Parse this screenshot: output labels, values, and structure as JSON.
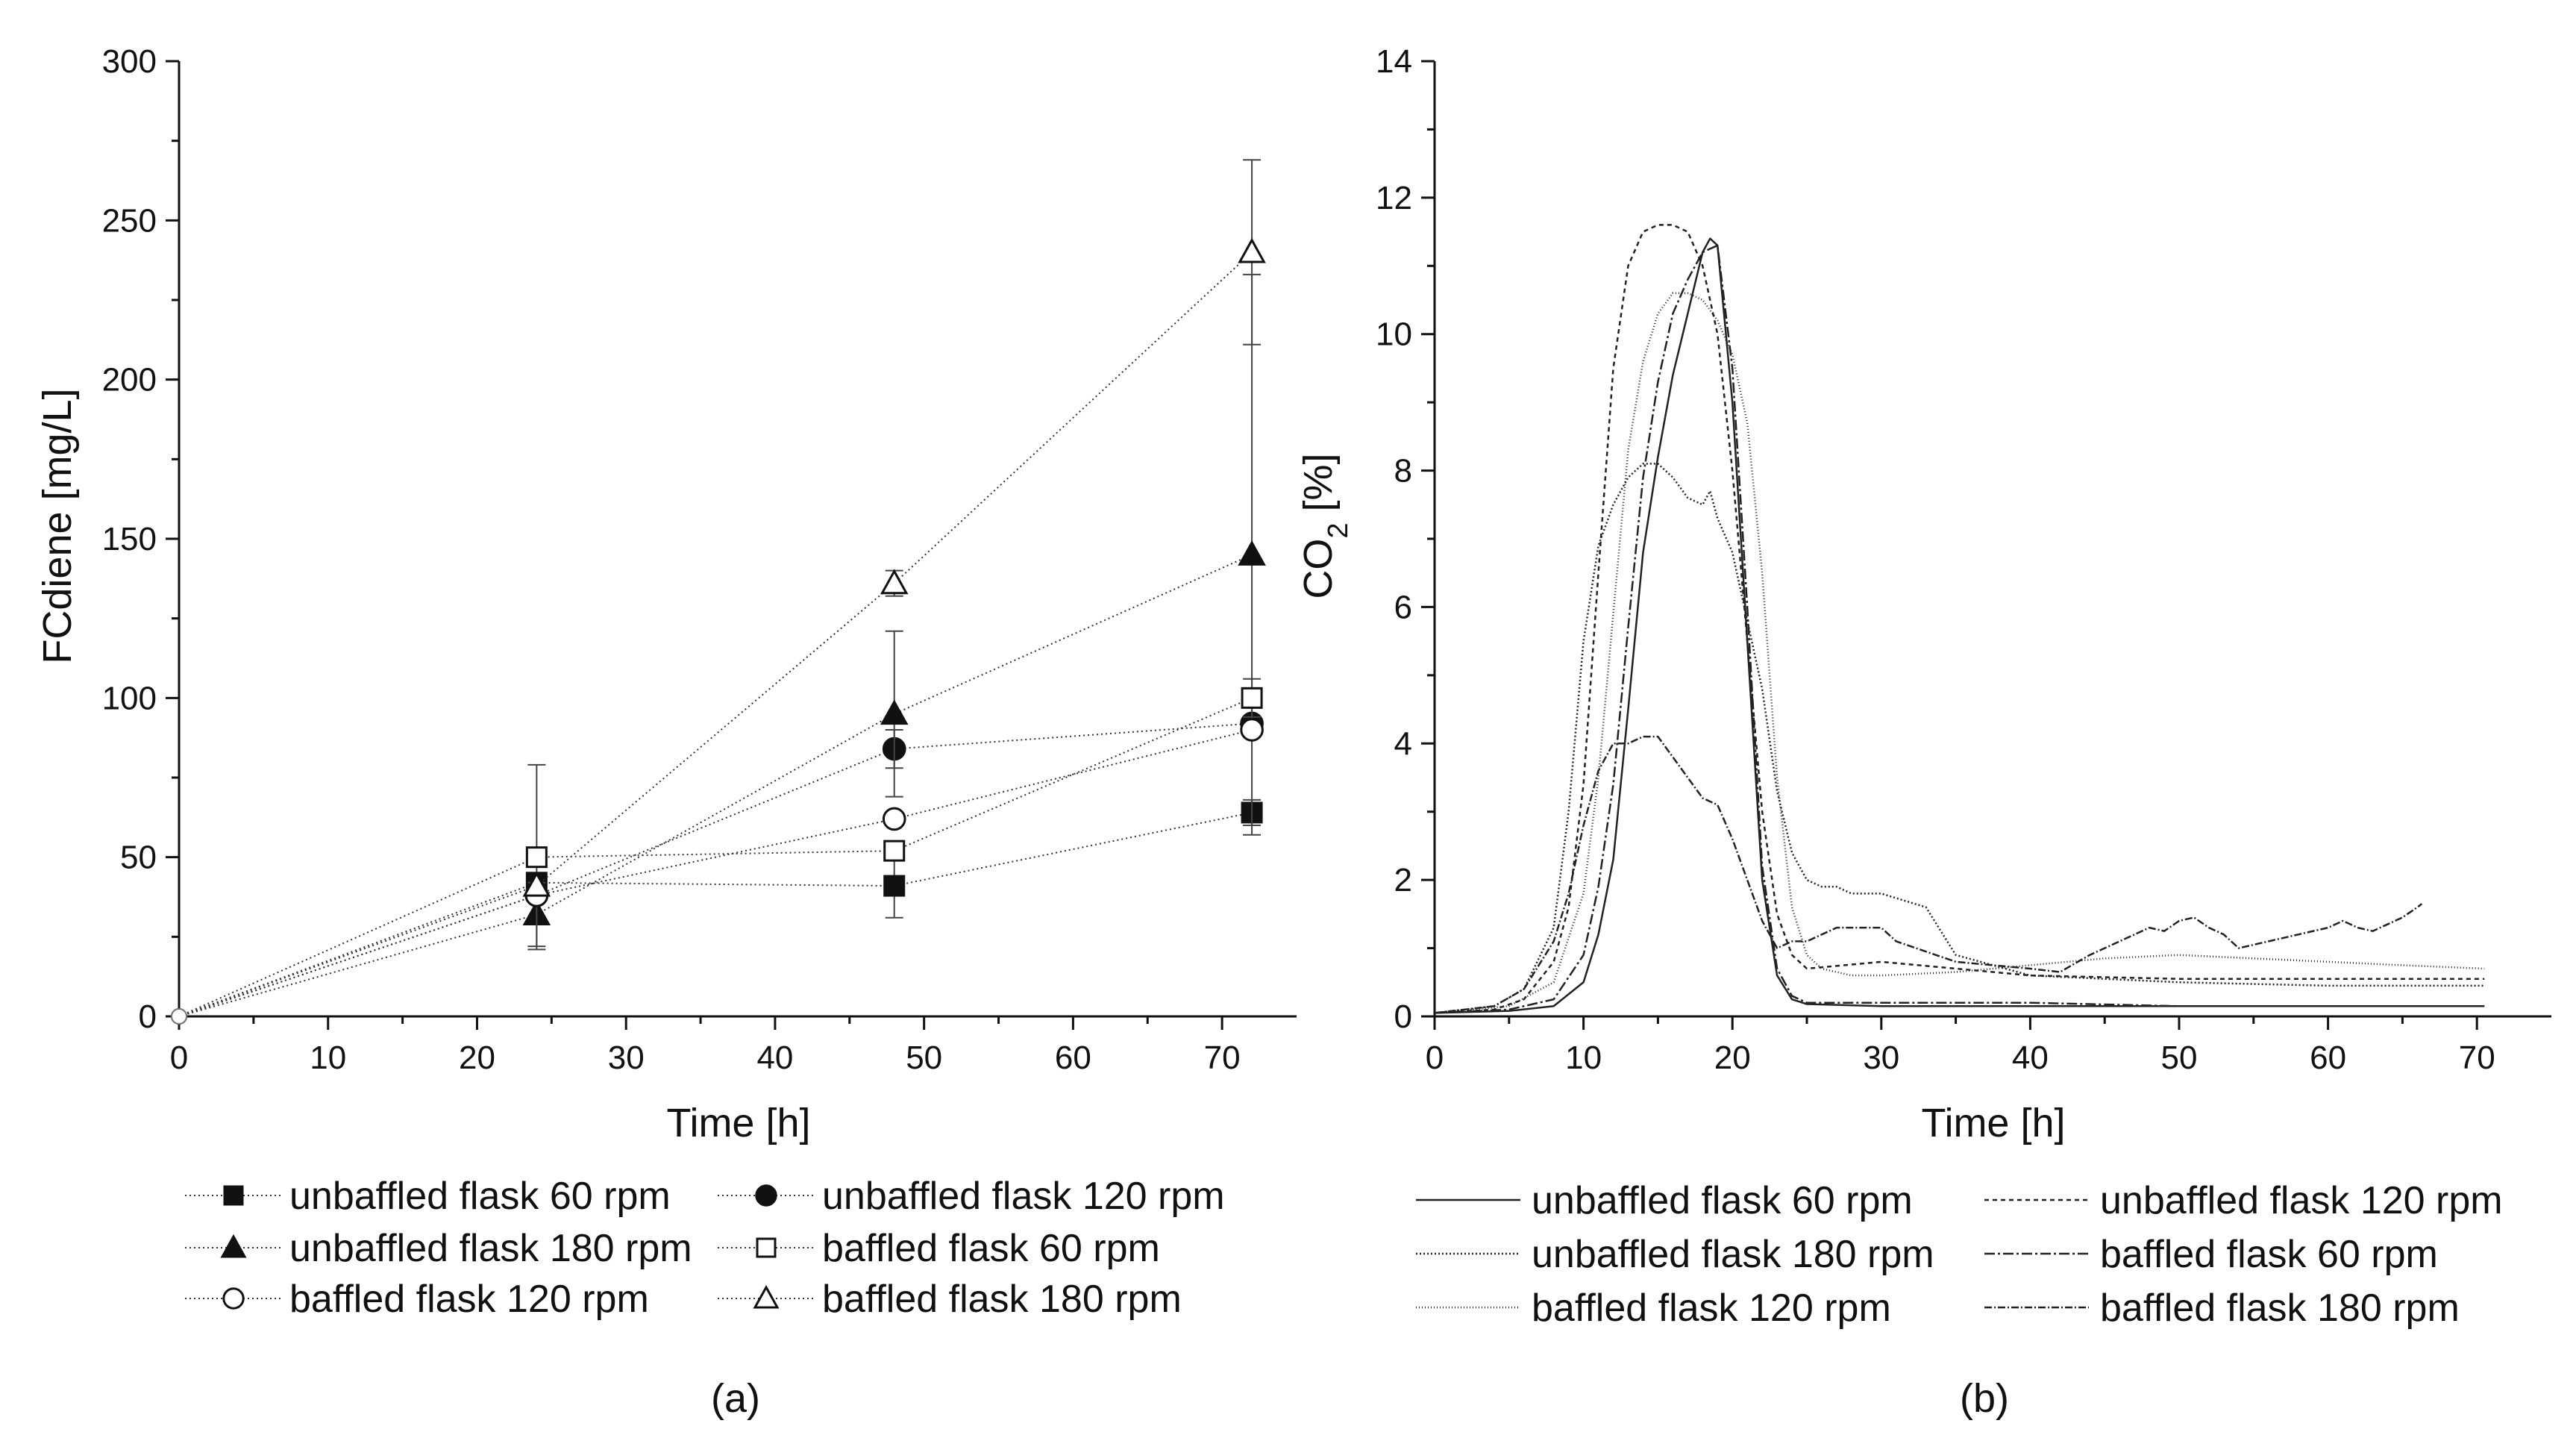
{
  "chart_data": [
    {
      "type": "scatter",
      "panel_label": "(a)",
      "xlabel": "Time [h]",
      "ylabel": "FCdiene [mg/L]",
      "xlim": [
        0,
        75
      ],
      "ylim": [
        0,
        300
      ],
      "xticks": [
        0,
        10,
        20,
        30,
        40,
        50,
        60,
        70
      ],
      "yticks": [
        0,
        50,
        100,
        150,
        200,
        250,
        300
      ],
      "grid": false,
      "legend_placement": "bottom",
      "series": [
        {
          "name": "unbaffled flask 60 rpm",
          "marker": "square-filled",
          "x": [
            0,
            24,
            48,
            72
          ],
          "values": [
            0,
            42,
            41,
            64
          ],
          "err": [
            0,
            0,
            10,
            4
          ]
        },
        {
          "name": "unbaffled flask 120 rpm",
          "marker": "circle-filled",
          "x": [
            0,
            24,
            48,
            72
          ],
          "values": [
            0,
            38,
            84,
            92
          ],
          "err": [
            0,
            0,
            6,
            0
          ]
        },
        {
          "name": "unbaffled flask 180 rpm",
          "marker": "triangle-filled",
          "x": [
            0,
            24,
            48,
            72
          ],
          "values": [
            0,
            32,
            95,
            145
          ],
          "err": [
            0,
            10,
            26,
            88
          ]
        },
        {
          "name": "baffled flask 60 rpm",
          "marker": "square-open",
          "x": [
            0,
            24,
            48,
            72
          ],
          "values": [
            0,
            50,
            52,
            100
          ],
          "err": [
            0,
            29,
            0,
            6
          ]
        },
        {
          "name": "baffled flask 120 rpm",
          "marker": "circle-open",
          "x": [
            0,
            24,
            48,
            72
          ],
          "values": [
            0,
            38,
            62,
            90
          ],
          "err": [
            0,
            0,
            0,
            0
          ]
        },
        {
          "name": "baffled flask 180 rpm",
          "marker": "triangle-open",
          "x": [
            0,
            24,
            48,
            72
          ],
          "values": [
            0,
            41,
            136,
            240
          ],
          "err": [
            0,
            0,
            4,
            29
          ]
        }
      ]
    },
    {
      "type": "line",
      "panel_label": "(b)",
      "xlabel": "Time [h]",
      "ylabel_main": "CO",
      "ylabel_sub": "2",
      "ylabel_suffix": " [%]",
      "xlim": [
        0,
        75
      ],
      "ylim": [
        0,
        14
      ],
      "xticks": [
        0,
        10,
        20,
        30,
        40,
        50,
        60,
        70
      ],
      "yticks": [
        0,
        2,
        4,
        6,
        8,
        10,
        12,
        14
      ],
      "grid": false,
      "legend_placement": "bottom",
      "series": [
        {
          "name": "unbaffled flask 60 rpm",
          "dash": "",
          "x": [
            0,
            5,
            8,
            10,
            11,
            12,
            13,
            14,
            15,
            16,
            17,
            18,
            18.5,
            19,
            20,
            21,
            22,
            23,
            24,
            25,
            30,
            40,
            50,
            60,
            70.5
          ],
          "values": [
            0.05,
            0.08,
            0.15,
            0.5,
            1.2,
            2.3,
            4.5,
            6.8,
            8.2,
            9.4,
            10.3,
            11.2,
            11.4,
            11.3,
            9,
            5.5,
            2,
            0.6,
            0.25,
            0.18,
            0.15,
            0.15,
            0.15,
            0.15,
            0.15
          ]
        },
        {
          "name": "unbaffled flask 120 rpm",
          "dash": "6,5",
          "x": [
            0,
            4,
            6,
            8,
            9,
            10,
            11,
            12,
            13,
            14,
            15,
            16,
            17,
            18,
            19,
            20,
            21,
            22,
            23,
            24,
            25,
            30,
            40,
            50,
            60,
            70.5
          ],
          "values": [
            0.05,
            0.1,
            0.25,
            0.8,
            1.6,
            3.4,
            6.5,
            9.5,
            11,
            11.5,
            11.6,
            11.6,
            11.5,
            11,
            10,
            8,
            5.5,
            3,
            1.5,
            0.9,
            0.7,
            0.8,
            0.6,
            0.55,
            0.55,
            0.55
          ]
        },
        {
          "name": "unbaffled flask 180 rpm",
          "dash": "2,3",
          "x": [
            0,
            4,
            6,
            8,
            9,
            10,
            11,
            12,
            13,
            14,
            15,
            16,
            17,
            18,
            18.5,
            19,
            20,
            21,
            22,
            23,
            24,
            25,
            26,
            27,
            28,
            30,
            33,
            35,
            40,
            50,
            60,
            70.5
          ],
          "values": [
            0.05,
            0.15,
            0.4,
            1.3,
            3,
            5.5,
            6.9,
            7.5,
            7.9,
            8.1,
            8.1,
            7.9,
            7.6,
            7.5,
            7.7,
            7.3,
            6.8,
            5.8,
            4.8,
            3.3,
            2.4,
            2,
            1.9,
            1.9,
            1.8,
            1.8,
            1.6,
            0.9,
            0.6,
            0.5,
            0.45,
            0.45
          ]
        },
        {
          "name": "baffled flask 60 rpm",
          "dash": "14,4,3,4",
          "x": [
            0,
            5,
            8,
            10,
            11,
            12,
            13,
            14,
            15,
            16,
            17,
            18,
            19,
            20,
            21,
            22,
            23,
            24,
            25,
            30,
            40,
            50,
            60,
            70.5
          ],
          "values": [
            0.05,
            0.1,
            0.25,
            0.9,
            1.9,
            3.4,
            5.7,
            7.9,
            9.3,
            10.3,
            10.8,
            11.2,
            11.3,
            9.5,
            6,
            2.2,
            0.7,
            0.3,
            0.2,
            0.2,
            0.2,
            0.15,
            0.15,
            0.15
          ]
        },
        {
          "name": "baffled flask 120 rpm",
          "dash": "1,3",
          "x": [
            0,
            5,
            8,
            10,
            11,
            12,
            13,
            14,
            15,
            16,
            17,
            18,
            19,
            20,
            21,
            22,
            23,
            24,
            25,
            26,
            28,
            30,
            35,
            40,
            45,
            50,
            55,
            60,
            65,
            70.5
          ],
          "values": [
            0.05,
            0.15,
            0.5,
            1.8,
            3.5,
            5.9,
            8.3,
            9.6,
            10.3,
            10.6,
            10.6,
            10.5,
            10.2,
            9.7,
            8.7,
            6.5,
            3.5,
            1.6,
            0.9,
            0.7,
            0.6,
            0.6,
            0.65,
            0.75,
            0.85,
            0.9,
            0.85,
            0.8,
            0.75,
            0.7
          ]
        },
        {
          "name": "baffled flask 180 rpm",
          "dash": "10,3,2,3",
          "x": [
            0,
            4,
            6,
            8,
            9,
            10,
            11,
            12,
            13,
            14,
            15,
            16,
            17,
            18,
            19,
            20,
            21,
            22,
            23,
            24,
            25,
            26,
            27,
            28,
            30,
            31,
            35,
            40,
            42,
            44,
            46,
            48,
            49,
            50,
            51,
            52,
            53,
            54,
            56,
            58,
            60,
            61,
            62,
            63,
            64,
            65,
            66,
            66.3
          ],
          "values": [
            0.05,
            0.15,
            0.4,
            1.1,
            1.8,
            2.8,
            3.6,
            4,
            4,
            4.1,
            4.1,
            3.8,
            3.5,
            3.2,
            3.1,
            2.6,
            2,
            1.4,
            1,
            1.1,
            1.1,
            1.2,
            1.3,
            1.3,
            1.3,
            1.1,
            0.8,
            0.7,
            0.65,
            0.9,
            1.1,
            1.3,
            1.25,
            1.4,
            1.45,
            1.3,
            1.2,
            1,
            1.1,
            1.2,
            1.3,
            1.4,
            1.3,
            1.25,
            1.35,
            1.45,
            1.6,
            1.65
          ]
        }
      ]
    }
  ]
}
